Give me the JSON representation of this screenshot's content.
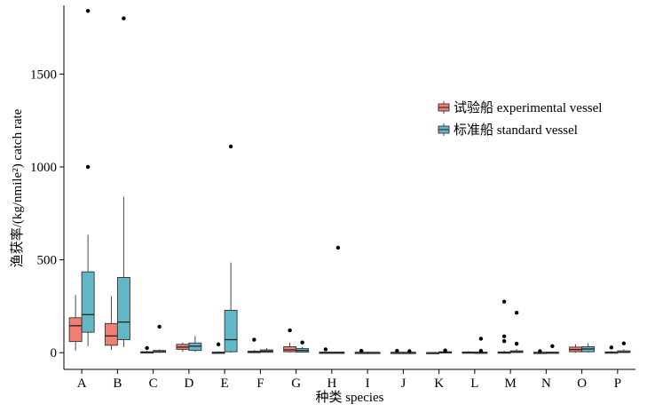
{
  "chart_data": {
    "type": "box",
    "xlabel": "种类 species",
    "ylabel": "渔获率/(kg/nmile²) catch rate",
    "ylim": [
      -90,
      1870
    ],
    "yticks": [
      0,
      500,
      1000,
      1500
    ],
    "grid": false,
    "legend_position": "right",
    "categories": [
      "A",
      "B",
      "C",
      "D",
      "E",
      "F",
      "G",
      "H",
      "I",
      "J",
      "K",
      "L",
      "M",
      "N",
      "O",
      "P"
    ],
    "series": [
      {
        "name": "试验船 experimental vessel",
        "color": "#F07F72",
        "boxes": [
          {
            "min": 12,
            "q1": 60,
            "median": 145,
            "q3": 188,
            "max": 310,
            "outliers": []
          },
          {
            "min": 15,
            "q1": 40,
            "median": 90,
            "q3": 157,
            "max": 305,
            "outliers": []
          },
          {
            "min": 0,
            "q1": 0,
            "median": 2,
            "q3": 5,
            "max": 10,
            "outliers": [
              25
            ]
          },
          {
            "min": 5,
            "q1": 18,
            "median": 30,
            "q3": 45,
            "max": 55,
            "outliers": []
          },
          {
            "min": 0,
            "q1": 0,
            "median": 1,
            "q3": 3,
            "max": 8,
            "outliers": [
              45
            ]
          },
          {
            "min": 0,
            "q1": 0,
            "median": 3,
            "q3": 8,
            "max": 15,
            "outliers": [
              70
            ]
          },
          {
            "min": 0,
            "q1": 5,
            "median": 15,
            "q3": 32,
            "max": 55,
            "outliers": [
              120
            ]
          },
          {
            "min": 0,
            "q1": 0,
            "median": 1,
            "q3": 3,
            "max": 6,
            "outliers": [
              18
            ]
          },
          {
            "min": 0,
            "q1": 0,
            "median": 1,
            "q3": 2,
            "max": 5,
            "outliers": [
              10
            ]
          },
          {
            "min": 0,
            "q1": 0,
            "median": 1,
            "q3": 2,
            "max": 4,
            "outliers": [
              10
            ]
          },
          {
            "min": 0,
            "q1": 0,
            "median": 0,
            "q3": 1,
            "max": 2,
            "outliers": []
          },
          {
            "min": 0,
            "q1": 0,
            "median": 1,
            "q3": 4,
            "max": 8,
            "outliers": []
          },
          {
            "min": 0,
            "q1": 0,
            "median": 1,
            "q3": 4,
            "max": 10,
            "outliers": [
              275,
              88,
              62
            ]
          },
          {
            "min": 0,
            "q1": 0,
            "median": 1,
            "q3": 2,
            "max": 4,
            "outliers": [
              8
            ]
          },
          {
            "min": 0,
            "q1": 5,
            "median": 17,
            "q3": 30,
            "max": 45,
            "outliers": []
          },
          {
            "min": 0,
            "q1": 0,
            "median": 2,
            "q3": 4,
            "max": 8,
            "outliers": [
              28
            ]
          }
        ]
      },
      {
        "name": "标准船 standard vessel",
        "color": "#62B7C6",
        "boxes": [
          {
            "min": 35,
            "q1": 110,
            "median": 205,
            "q3": 435,
            "max": 635,
            "outliers": [
              1840,
              1000
            ]
          },
          {
            "min": 30,
            "q1": 70,
            "median": 165,
            "q3": 405,
            "max": 840,
            "outliers": [
              1800
            ]
          },
          {
            "min": 0,
            "q1": 2,
            "median": 5,
            "q3": 12,
            "max": 18,
            "outliers": [
              140
            ]
          },
          {
            "min": 5,
            "q1": 12,
            "median": 35,
            "q3": 52,
            "max": 90,
            "outliers": []
          },
          {
            "min": 0,
            "q1": 5,
            "median": 70,
            "q3": 228,
            "max": 485,
            "outliers": [
              1110
            ]
          },
          {
            "min": 0,
            "q1": 2,
            "median": 8,
            "q3": 15,
            "max": 25,
            "outliers": []
          },
          {
            "min": 0,
            "q1": 3,
            "median": 12,
            "q3": 22,
            "max": 30,
            "outliers": [
              55
            ]
          },
          {
            "min": 0,
            "q1": 0,
            "median": 1,
            "q3": 3,
            "max": 5,
            "outliers": [
              565
            ]
          },
          {
            "min": 0,
            "q1": 0,
            "median": 1,
            "q3": 2,
            "max": 4,
            "outliers": []
          },
          {
            "min": 0,
            "q1": 0,
            "median": 1,
            "q3": 2,
            "max": 4,
            "outliers": [
              8
            ]
          },
          {
            "min": 0,
            "q1": 0,
            "median": 2,
            "q3": 5,
            "max": 8,
            "outliers": [
              12
            ]
          },
          {
            "min": 0,
            "q1": 0,
            "median": 1,
            "q3": 3,
            "max": 6,
            "outliers": [
              75,
              10
            ]
          },
          {
            "min": 0,
            "q1": 1,
            "median": 4,
            "q3": 10,
            "max": 20,
            "outliers": [
              215,
              48
            ]
          },
          {
            "min": 0,
            "q1": 0,
            "median": 1,
            "q3": 3,
            "max": 5,
            "outliers": [
              35
            ]
          },
          {
            "min": 0,
            "q1": 5,
            "median": 20,
            "q3": 32,
            "max": 50,
            "outliers": []
          },
          {
            "min": 0,
            "q1": 1,
            "median": 3,
            "q3": 10,
            "max": 18,
            "outliers": [
              50
            ]
          }
        ]
      }
    ]
  }
}
